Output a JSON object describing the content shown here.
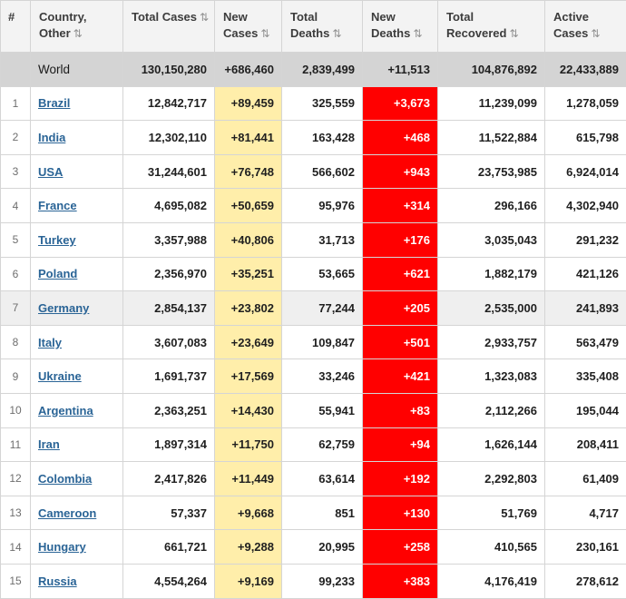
{
  "colors": {
    "header_bg": "#f3f3f3",
    "world_row_bg": "#d4d4d4",
    "shaded_row_bg": "#efefef",
    "new_cases_bg": "#ffeeaa",
    "new_deaths_bg": "#ff0000",
    "new_deaths_text": "#ffffff",
    "link_color": "#2a6496"
  },
  "icons": {
    "sort": "⇅"
  },
  "table": {
    "columns": [
      {
        "key": "rank",
        "label": "#",
        "sortable": false
      },
      {
        "key": "country",
        "label": "Country, Other",
        "sortable": true
      },
      {
        "key": "total_cases",
        "label": "Total Cases",
        "sortable": true
      },
      {
        "key": "new_cases",
        "label": "New Cases",
        "sortable": true
      },
      {
        "key": "total_deaths",
        "label": "Total Deaths",
        "sortable": true
      },
      {
        "key": "new_deaths",
        "label": "New Deaths",
        "sortable": true
      },
      {
        "key": "total_recovered",
        "label": "Total Recovered",
        "sortable": true
      },
      {
        "key": "active_cases",
        "label": "Active Cases",
        "sortable": true
      }
    ],
    "world_row": {
      "rank": "",
      "country": "World",
      "total_cases": "130,150,280",
      "new_cases": "+686,460",
      "total_deaths": "2,839,499",
      "new_deaths": "+11,513",
      "total_recovered": "104,876,892",
      "active_cases": "22,433,889"
    },
    "rows": [
      {
        "rank": "1",
        "country": "Brazil",
        "total_cases": "12,842,717",
        "new_cases": "+89,459",
        "total_deaths": "325,559",
        "new_deaths": "+3,673",
        "total_recovered": "11,239,099",
        "active_cases": "1,278,059",
        "shaded": false
      },
      {
        "rank": "2",
        "country": "India",
        "total_cases": "12,302,110",
        "new_cases": "+81,441",
        "total_deaths": "163,428",
        "new_deaths": "+468",
        "total_recovered": "11,522,884",
        "active_cases": "615,798",
        "shaded": false
      },
      {
        "rank": "3",
        "country": "USA",
        "total_cases": "31,244,601",
        "new_cases": "+76,748",
        "total_deaths": "566,602",
        "new_deaths": "+943",
        "total_recovered": "23,753,985",
        "active_cases": "6,924,014",
        "shaded": false
      },
      {
        "rank": "4",
        "country": "France",
        "total_cases": "4,695,082",
        "new_cases": "+50,659",
        "total_deaths": "95,976",
        "new_deaths": "+314",
        "total_recovered": "296,166",
        "active_cases": "4,302,940",
        "shaded": false
      },
      {
        "rank": "5",
        "country": "Turkey",
        "total_cases": "3,357,988",
        "new_cases": "+40,806",
        "total_deaths": "31,713",
        "new_deaths": "+176",
        "total_recovered": "3,035,043",
        "active_cases": "291,232",
        "shaded": false
      },
      {
        "rank": "6",
        "country": "Poland",
        "total_cases": "2,356,970",
        "new_cases": "+35,251",
        "total_deaths": "53,665",
        "new_deaths": "+621",
        "total_recovered": "1,882,179",
        "active_cases": "421,126",
        "shaded": false
      },
      {
        "rank": "7",
        "country": "Germany",
        "total_cases": "2,854,137",
        "new_cases": "+23,802",
        "total_deaths": "77,244",
        "new_deaths": "+205",
        "total_recovered": "2,535,000",
        "active_cases": "241,893",
        "shaded": true
      },
      {
        "rank": "8",
        "country": "Italy",
        "total_cases": "3,607,083",
        "new_cases": "+23,649",
        "total_deaths": "109,847",
        "new_deaths": "+501",
        "total_recovered": "2,933,757",
        "active_cases": "563,479",
        "shaded": false
      },
      {
        "rank": "9",
        "country": "Ukraine",
        "total_cases": "1,691,737",
        "new_cases": "+17,569",
        "total_deaths": "33,246",
        "new_deaths": "+421",
        "total_recovered": "1,323,083",
        "active_cases": "335,408",
        "shaded": false
      },
      {
        "rank": "10",
        "country": "Argentina",
        "total_cases": "2,363,251",
        "new_cases": "+14,430",
        "total_deaths": "55,941",
        "new_deaths": "+83",
        "total_recovered": "2,112,266",
        "active_cases": "195,044",
        "shaded": false
      },
      {
        "rank": "11",
        "country": "Iran",
        "total_cases": "1,897,314",
        "new_cases": "+11,750",
        "total_deaths": "62,759",
        "new_deaths": "+94",
        "total_recovered": "1,626,144",
        "active_cases": "208,411",
        "shaded": false
      },
      {
        "rank": "12",
        "country": "Colombia",
        "total_cases": "2,417,826",
        "new_cases": "+11,449",
        "total_deaths": "63,614",
        "new_deaths": "+192",
        "total_recovered": "2,292,803",
        "active_cases": "61,409",
        "shaded": false
      },
      {
        "rank": "13",
        "country": "Cameroon",
        "total_cases": "57,337",
        "new_cases": "+9,668",
        "total_deaths": "851",
        "new_deaths": "+130",
        "total_recovered": "51,769",
        "active_cases": "4,717",
        "shaded": false
      },
      {
        "rank": "14",
        "country": "Hungary",
        "total_cases": "661,721",
        "new_cases": "+9,288",
        "total_deaths": "20,995",
        "new_deaths": "+258",
        "total_recovered": "410,565",
        "active_cases": "230,161",
        "shaded": false
      },
      {
        "rank": "15",
        "country": "Russia",
        "total_cases": "4,554,264",
        "new_cases": "+9,169",
        "total_deaths": "99,233",
        "new_deaths": "+383",
        "total_recovered": "4,176,419",
        "active_cases": "278,612",
        "shaded": false
      }
    ]
  }
}
